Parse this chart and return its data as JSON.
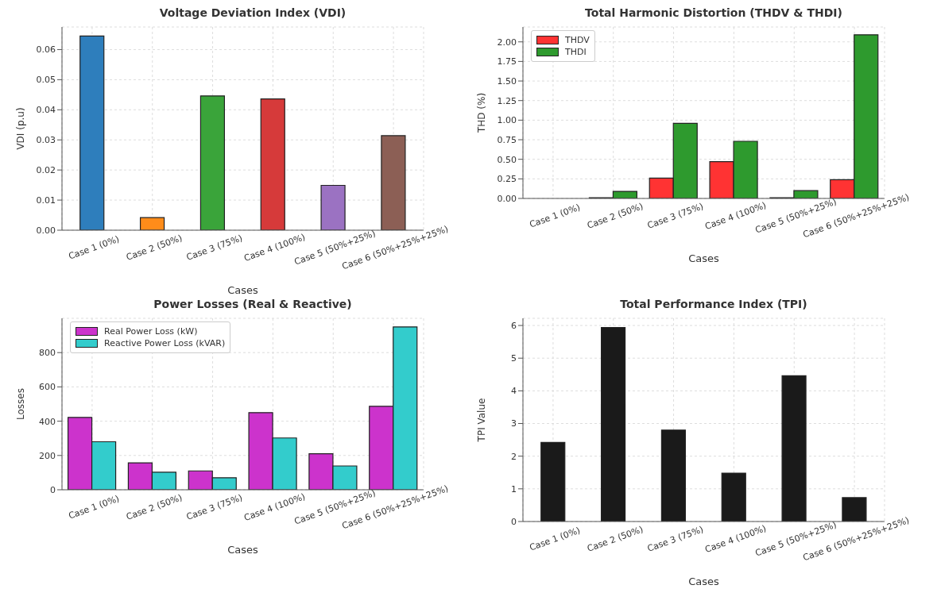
{
  "chart_data": [
    {
      "type": "bar",
      "title": "Voltage Deviation Index (VDI)",
      "xlabel": "Cases",
      "ylabel": "VDI (p.u)",
      "categories": [
        "Case 1 (0%)",
        "Case 2 (50%)",
        "Case 3 (75%)",
        "Case 4 (100%)",
        "Case 5 (50%+25%)",
        "Case 6 (50%+25%+25%)"
      ],
      "values": [
        0.0645,
        0.0042,
        0.0446,
        0.0436,
        0.0149,
        0.0314
      ],
      "colors": [
        "#2e7ebc",
        "#ff8c1a",
        "#3aa43a",
        "#d63a3a",
        "#9b72c2",
        "#8c5f55"
      ],
      "ylim": [
        0,
        0.0675
      ],
      "yticks": [
        {
          "value": 0,
          "label": "0.00"
        },
        0.01,
        0.02,
        0.03,
        0.04,
        0.05,
        0.06
      ],
      "grid": true
    },
    {
      "type": "bar",
      "title": "Total Harmonic Distortion (THDV & THDI)",
      "xlabel": "Cases",
      "ylabel": "THD (%)",
      "categories": [
        "Case 1 (0%)",
        "Case 2 (50%)",
        "Case 3 (75%)",
        "Case 4 (100%)",
        "Case 5 (50%+25%)",
        "Case 6 (50%+25%+25%)"
      ],
      "series": [
        {
          "name": "THDV",
          "color": "#ff3333",
          "values": [
            0,
            0.01,
            0.26,
            0.47,
            0.01,
            0.24
          ]
        },
        {
          "name": "THDI",
          "color": "#2e9a2e",
          "values": [
            0,
            0.09,
            0.96,
            0.73,
            0.1,
            2.09
          ]
        }
      ],
      "ylim": [
        0,
        2.19
      ],
      "yticks": [
        {
          "value": 0,
          "label": "0.00"
        },
        0.25,
        {
          "value": 0.5,
          "label": "0.50"
        },
        0.75,
        {
          "value": 1,
          "label": "1.00"
        },
        1.25,
        {
          "value": 1.5,
          "label": "1.50"
        },
        1.75,
        {
          "value": 2,
          "label": "2.00"
        }
      ],
      "grid": true,
      "legend": "top left"
    },
    {
      "type": "bar",
      "title": "Power Losses (Real & Reactive)",
      "xlabel": "Cases",
      "ylabel": "Losses",
      "categories": [
        "Case 1 (0%)",
        "Case 2 (50%)",
        "Case 3 (75%)",
        "Case 4 (100%)",
        "Case 5 (50%+25%)",
        "Case 6 (50%+25%+25%)"
      ],
      "series": [
        {
          "name": "Real Power Loss (kW)",
          "color": "#cc33cc",
          "values": [
            422,
            157,
            110,
            450,
            210,
            487
          ]
        },
        {
          "name": "Reactive Power Loss (kVAR)",
          "color": "#33cccc",
          "values": [
            280,
            102,
            70,
            302,
            139,
            950
          ]
        }
      ],
      "ylim": [
        0,
        1000
      ],
      "yticks": [
        0,
        200,
        400,
        600,
        800
      ],
      "grid": true,
      "legend": "top left"
    },
    {
      "type": "bar",
      "title": "Total Performance Index (TPI)",
      "xlabel": "Cases",
      "ylabel": "TPI Value",
      "categories": [
        "Case 1 (0%)",
        "Case 2 (50%)",
        "Case 3 (75%)",
        "Case 4 (100%)",
        "Case 5 (50%+25%)",
        "Case 6 (50%+25%+25%)"
      ],
      "values": [
        2.42,
        5.94,
        2.8,
        1.48,
        4.46,
        0.73
      ],
      "color": "#1a1a1a",
      "ylim": [
        0,
        6.22
      ],
      "yticks": [
        0,
        1,
        2,
        3,
        4,
        5,
        6
      ],
      "grid": true
    }
  ]
}
